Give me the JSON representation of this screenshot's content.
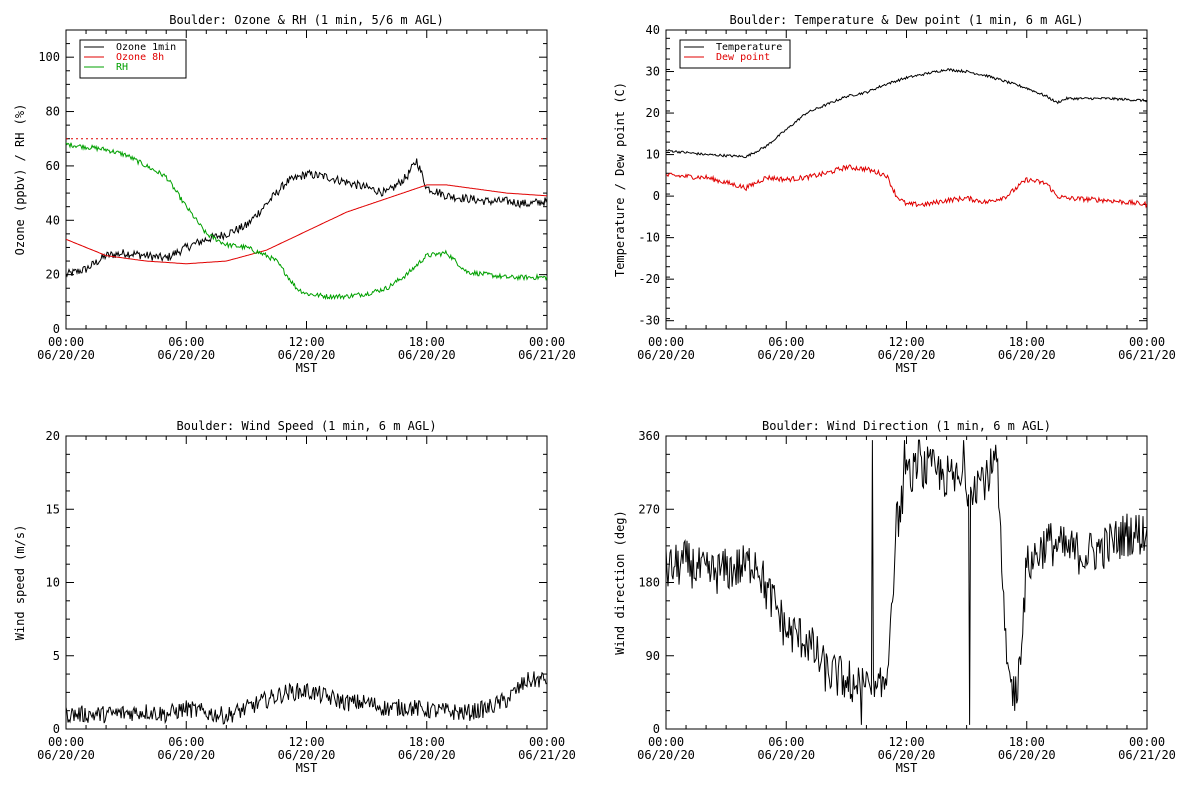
{
  "charts": [
    {
      "id": "ozone-rh",
      "type": "line",
      "title": "Boulder: Ozone & RH (1 min, 5/6 m AGL)",
      "xlabel": "MST",
      "ylabel": "Ozone (ppbv) / RH (%)",
      "ylim": [
        0,
        110
      ],
      "yticks": [
        "0",
        "20",
        "40",
        "60",
        "80",
        "100"
      ],
      "yticks_values": [
        0,
        20,
        40,
        60,
        80,
        100
      ],
      "xticks": [
        [
          "00:00",
          "06/20/20"
        ],
        [
          "06:00",
          "06/20/20"
        ],
        [
          "12:00",
          "06/20/20"
        ],
        [
          "18:00",
          "06/20/20"
        ],
        [
          "00:00",
          "06/21/20"
        ]
      ],
      "legend": "top-left",
      "reference_line": 70,
      "series": [
        {
          "name": "Ozone 1min",
          "color": "#000000",
          "noise": 1.6,
          "x": [
            0,
            1,
            2,
            3,
            4,
            5,
            6,
            7,
            8,
            9,
            10,
            11,
            12,
            13,
            14,
            15,
            16,
            17,
            17.5,
            18,
            19,
            20,
            21,
            22,
            23,
            24
          ],
          "y": [
            20,
            22,
            27,
            28,
            27,
            26,
            30,
            33,
            35,
            38,
            46,
            54,
            57,
            56,
            54,
            52,
            50,
            56,
            62,
            52,
            49,
            48,
            47,
            47,
            46,
            47
          ]
        },
        {
          "name": "Ozone 8h",
          "color": "#e00000",
          "noise": 0,
          "x": [
            0,
            2,
            4,
            6,
            8,
            10,
            12,
            14,
            16,
            18,
            19,
            20,
            22,
            24
          ],
          "y": [
            33,
            27,
            25,
            24,
            25,
            29,
            36,
            43,
            48,
            53,
            53,
            52,
            50,
            49
          ]
        },
        {
          "name": "RH",
          "color": "#00a000",
          "noise": 0.9,
          "x": [
            0,
            1,
            2,
            3,
            4,
            5,
            6,
            7,
            8,
            9,
            10,
            10.5,
            11,
            11.5,
            12,
            13,
            14,
            15,
            16,
            17,
            18,
            19,
            20,
            22,
            24
          ],
          "y": [
            68,
            67,
            66,
            64,
            60,
            56,
            45,
            35,
            31,
            30,
            27,
            25,
            20,
            15,
            13,
            12,
            12,
            13,
            15,
            20,
            27,
            28,
            21,
            19,
            19
          ]
        }
      ]
    },
    {
      "id": "temp-dew",
      "type": "line",
      "title": "Boulder: Temperature & Dew point (1 min, 6 m AGL)",
      "xlabel": "MST",
      "ylabel": "Temperature / Dew point (C)",
      "ylim": [
        -32,
        40
      ],
      "yticks": [
        "-30",
        "-20",
        "-10",
        "0",
        "10",
        "20",
        "30",
        "40"
      ],
      "yticks_values": [
        -30,
        -20,
        -10,
        0,
        10,
        20,
        30,
        40
      ],
      "xticks": [
        [
          "00:00",
          "06/20/20"
        ],
        [
          "06:00",
          "06/20/20"
        ],
        [
          "12:00",
          "06/20/20"
        ],
        [
          "18:00",
          "06/20/20"
        ],
        [
          "00:00",
          "06/21/20"
        ]
      ],
      "legend": "top-left",
      "series": [
        {
          "name": "Temperature",
          "color": "#000000",
          "noise": 0.3,
          "x": [
            0,
            2,
            4,
            5,
            6,
            7,
            8,
            9,
            10,
            11,
            12,
            13,
            14,
            15,
            16,
            17,
            18,
            19,
            19.5,
            20,
            22,
            24
          ],
          "y": [
            11,
            10,
            9.5,
            12,
            16,
            20,
            22,
            24,
            25,
            27,
            28.5,
            29.5,
            30.5,
            30,
            29,
            27.5,
            26,
            24,
            22.5,
            23.5,
            23.5,
            23
          ]
        },
        {
          "name": "Dew point",
          "color": "#e00000",
          "noise": 0.6,
          "x": [
            0,
            2,
            4,
            5,
            6,
            7,
            8,
            9,
            10,
            11,
            11.5,
            12,
            13,
            14,
            15,
            16,
            17,
            18,
            19,
            19.5,
            20,
            22,
            24
          ],
          "y": [
            5,
            4.5,
            2,
            4.5,
            4,
            4.5,
            5.5,
            7,
            6.5,
            5,
            0,
            -2,
            -2,
            -1,
            -0.5,
            -1.5,
            0,
            4,
            3,
            0,
            -0.5,
            -1,
            -2
          ]
        }
      ]
    },
    {
      "id": "wind-speed",
      "type": "line",
      "title": "Boulder: Wind Speed (1 min, 6 m AGL)",
      "xlabel": "MST",
      "ylabel": "Wind speed (m/s)",
      "ylim": [
        0,
        20
      ],
      "yticks": [
        "0",
        "5",
        "10",
        "15",
        "20"
      ],
      "yticks_values": [
        0,
        5,
        10,
        15,
        20
      ],
      "xticks": [
        [
          "00:00",
          "06/20/20"
        ],
        [
          "06:00",
          "06/20/20"
        ],
        [
          "12:00",
          "06/20/20"
        ],
        [
          "18:00",
          "06/20/20"
        ],
        [
          "00:00",
          "06/21/20"
        ]
      ],
      "series": [
        {
          "name": "",
          "color": "#000000",
          "noise": 0.6,
          "x": [
            0,
            2,
            4,
            5,
            6,
            7,
            8,
            9,
            10,
            11,
            12,
            13,
            14,
            15,
            16,
            17,
            18,
            19,
            20,
            21,
            22,
            23,
            24
          ],
          "y": [
            1,
            1,
            1.2,
            1,
            1.4,
            1.1,
            0.9,
            1.4,
            2,
            2.5,
            2.6,
            2.2,
            1.8,
            1.8,
            1.4,
            1.5,
            1.3,
            1.2,
            1.1,
            1.4,
            2,
            3.3,
            3.4
          ]
        }
      ]
    },
    {
      "id": "wind-dir",
      "type": "line",
      "title": "Boulder: Wind Direction (1 min, 6 m AGL)",
      "xlabel": "MST",
      "ylabel": "Wind direction (deg)",
      "ylim": [
        0,
        360
      ],
      "yticks": [
        "0",
        "90",
        "180",
        "270",
        "360"
      ],
      "yticks_values": [
        0,
        90,
        180,
        270,
        360
      ],
      "xticks": [
        [
          "00:00",
          "06/20/20"
        ],
        [
          "06:00",
          "06/20/20"
        ],
        [
          "12:00",
          "06/20/20"
        ],
        [
          "18:00",
          "06/20/20"
        ],
        [
          "00:00",
          "06/21/20"
        ]
      ],
      "series": [
        {
          "name": "",
          "color": "#000000",
          "noise": 28,
          "x": [
            0,
            1,
            2,
            3,
            4,
            4.5,
            5,
            5.5,
            6,
            7,
            8,
            9,
            10,
            10.5,
            11,
            11.5,
            12,
            13,
            14,
            15,
            16,
            16.5,
            17,
            17.5,
            18,
            19,
            20,
            21,
            22,
            23,
            24
          ],
          "y": [
            195,
            205,
            190,
            195,
            200,
            210,
            170,
            150,
            120,
            110,
            70,
            60,
            50,
            40,
            60,
            250,
            310,
            320,
            310,
            300,
            310,
            330,
            70,
            40,
            200,
            230,
            220,
            215,
            225,
            240,
            240
          ]
        }
      ]
    }
  ]
}
